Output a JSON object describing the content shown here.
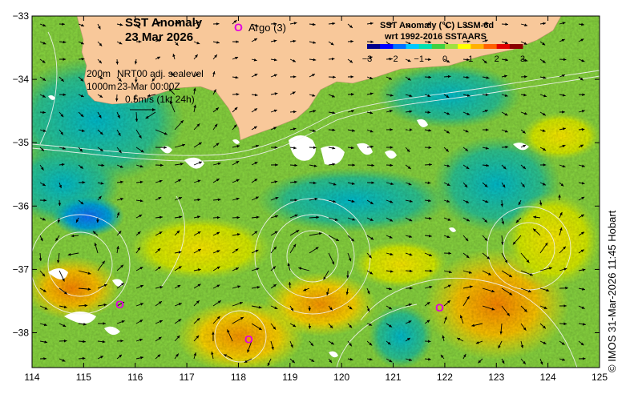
{
  "title": {
    "line1": "SST Anomaly",
    "line2": "23 Mar 2026"
  },
  "argo": {
    "symbol": "O",
    "label": "Argo (3)",
    "color": "#e000e0",
    "floats": [
      {
        "lon": 115.7,
        "lat": -37.55
      },
      {
        "lon": 121.9,
        "lat": -37.6
      },
      {
        "lon": 118.2,
        "lat": -38.1
      }
    ]
  },
  "colorbar": {
    "title1": "SST Anomaly (°C) L3SM-6d",
    "title2": "wrt 1992-2016 SSTAARS",
    "ticks": [
      "−3",
      "−2",
      "−1",
      "0",
      "1",
      "2",
      "3"
    ],
    "colors": [
      "#00008b",
      "#0000ff",
      "#0070ff",
      "#00c8ff",
      "#00e0b0",
      "#40d040",
      "#a0e040",
      "#ffff00",
      "#ffb000",
      "#ff6000",
      "#e00000",
      "#8b0000"
    ]
  },
  "info": {
    "contour1": "200m",
    "contour2": "1000m",
    "source": "NRT00 adj. sealevel",
    "time": "23-Mar 00:00Z",
    "scale": "0.5m/s (1kt 24h)"
  },
  "axes": {
    "x_ticks": [
      "114",
      "115",
      "116",
      "117",
      "118",
      "119",
      "120",
      "121",
      "122",
      "123",
      "124",
      "125"
    ],
    "y_ticks": [
      "−33",
      "−34",
      "−35",
      "−36",
      "−37",
      "−38"
    ],
    "lon_range": [
      114,
      125
    ],
    "lat_range": [
      -38.55,
      -33
    ]
  },
  "copyright": "© IMOS 31-Mar-2026 11:45 Hobart",
  "colors": {
    "land": "#f8c89a",
    "cloud": "#ffffff"
  }
}
